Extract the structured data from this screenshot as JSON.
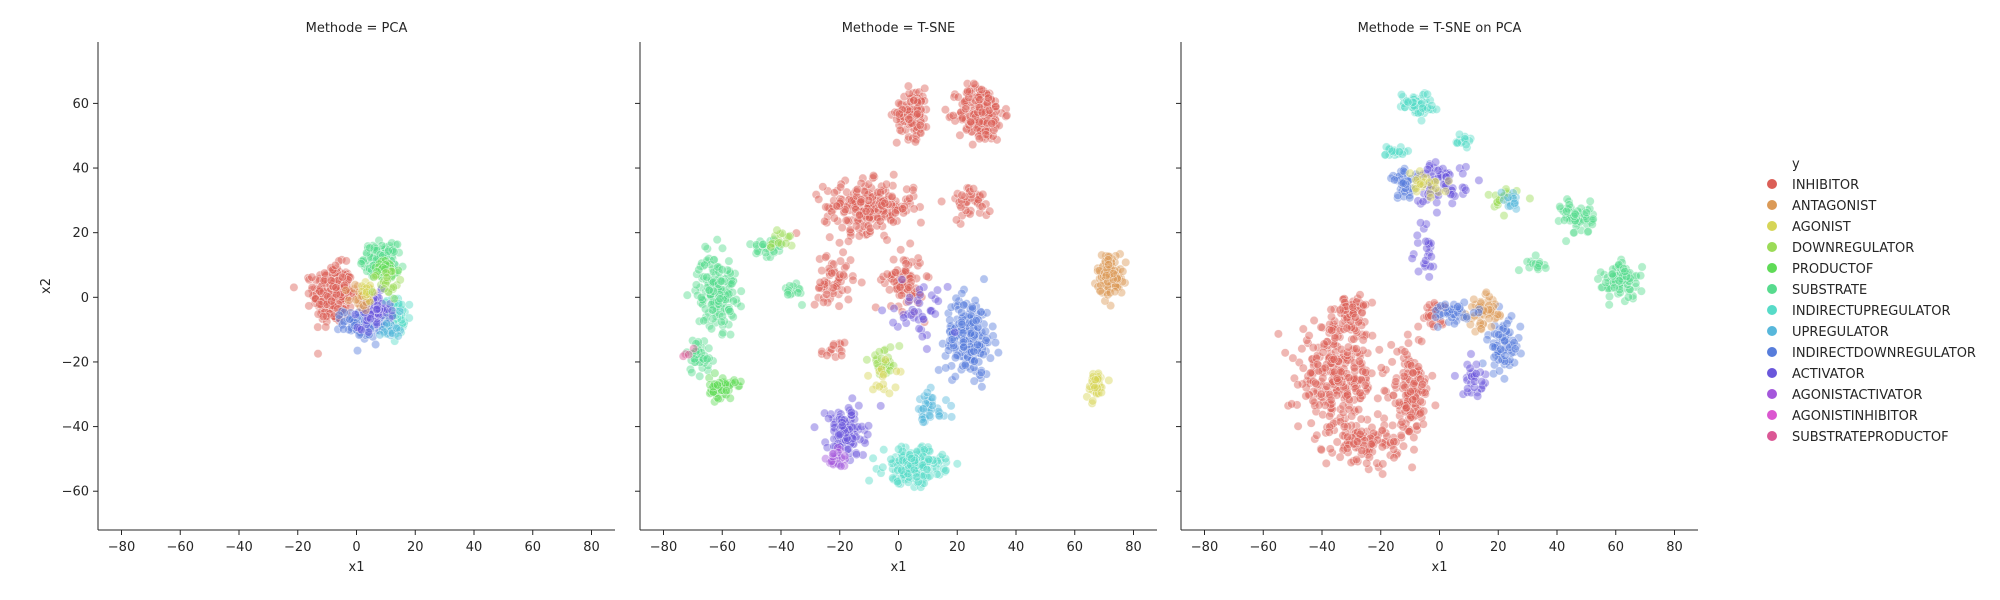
{
  "chart_data": {
    "type": "scatter",
    "ylabel": "x2",
    "legend": {
      "title": "y",
      "placement": "right",
      "entries": [
        {
          "name": "INHIBITOR",
          "color": "#db5f57"
        },
        {
          "name": "ANTAGONIST",
          "color": "#db9a57"
        },
        {
          "name": "AGONIST",
          "color": "#d6d557"
        },
        {
          "name": "DOWNREGULATOR",
          "color": "#9bdb57"
        },
        {
          "name": "PRODUCTOF",
          "color": "#5fdb57"
        },
        {
          "name": "SUBSTRATE",
          "color": "#57db8e"
        },
        {
          "name": "INDIRECTUPREGULATOR",
          "color": "#57dbc8"
        },
        {
          "name": "UPREGULATOR",
          "color": "#57b7db"
        },
        {
          "name": "INDIRECTDOWNREGULATOR",
          "color": "#577ddb"
        },
        {
          "name": "ACTIVATOR",
          "color": "#6a57db"
        },
        {
          "name": "AGONISTACTIVATOR",
          "color": "#a457db"
        },
        {
          "name": "AGONISTINHIBITOR",
          "color": "#db57d0"
        },
        {
          "name": "SUBSTRATEPRODUCTOF",
          "color": "#db5795"
        }
      ]
    },
    "shared_xlim": [
      -88,
      88
    ],
    "shared_ylim": [
      -72,
      79
    ],
    "xticks": [
      -80,
      -60,
      -40,
      -20,
      0,
      20,
      40,
      60,
      80
    ],
    "yticks": [
      60,
      40,
      20,
      0,
      -20,
      -40,
      -60
    ],
    "grid": false,
    "panels": [
      {
        "title": "Methode = PCA",
        "xlabel": "x1",
        "clusters": [
          {
            "category": "INHIBITOR",
            "center": [
              -8,
              1
            ],
            "spread": [
              6,
              8
            ],
            "n": 320
          },
          {
            "category": "SUBSTRATE",
            "center": [
              8,
              12
            ],
            "spread": [
              5,
              4
            ],
            "n": 140
          },
          {
            "category": "PRODUCTOF",
            "center": [
              10,
              8
            ],
            "spread": [
              4,
              3
            ],
            "n": 50
          },
          {
            "category": "INDIRECTUPREGULATOR",
            "center": [
              13,
              -6
            ],
            "spread": [
              3,
              5
            ],
            "n": 100
          },
          {
            "category": "INDIRECTDOWNREGULATOR",
            "center": [
              2,
              -8
            ],
            "spread": [
              6,
              4
            ],
            "n": 120
          },
          {
            "category": "ACTIVATOR",
            "center": [
              6,
              -4
            ],
            "spread": [
              5,
              5
            ],
            "n": 80
          },
          {
            "category": "ANTAGONIST",
            "center": [
              2,
              0
            ],
            "spread": [
              4,
              4
            ],
            "n": 30
          },
          {
            "category": "AGONIST",
            "center": [
              3,
              3
            ],
            "spread": [
              3,
              3
            ],
            "n": 15
          },
          {
            "category": "DOWNREGULATOR",
            "center": [
              10,
              4
            ],
            "spread": [
              4,
              4
            ],
            "n": 20
          },
          {
            "category": "UPREGULATOR",
            "center": [
              12,
              -10
            ],
            "spread": [
              3,
              3
            ],
            "n": 20
          }
        ]
      },
      {
        "title": "Methode = T-SNE",
        "xlabel": "x1",
        "clusters": [
          {
            "category": "INHIBITOR",
            "center": [
              28,
              57
            ],
            "spread": [
              7,
              8
            ],
            "n": 200
          },
          {
            "category": "INHIBITOR",
            "center": [
              5,
              57
            ],
            "spread": [
              5,
              7
            ],
            "n": 110
          },
          {
            "category": "INHIBITOR",
            "center": [
              -10,
              28
            ],
            "spread": [
              14,
              7
            ],
            "n": 230
          },
          {
            "category": "INHIBITOR",
            "center": [
              2,
              5
            ],
            "spread": [
              6,
              8
            ],
            "n": 80
          },
          {
            "category": "INHIBITOR",
            "center": [
              -22,
              5
            ],
            "spread": [
              6,
              9
            ],
            "n": 60
          },
          {
            "category": "INHIBITOR",
            "center": [
              25,
              30
            ],
            "spread": [
              6,
              5
            ],
            "n": 40
          },
          {
            "category": "INHIBITOR",
            "center": [
              -22,
              -17
            ],
            "spread": [
              4,
              3
            ],
            "n": 15
          },
          {
            "category": "SUBSTRATE",
            "center": [
              -62,
              2
            ],
            "spread": [
              6,
              10
            ],
            "n": 170
          },
          {
            "category": "SUBSTRATE",
            "center": [
              -68,
              -18
            ],
            "spread": [
              4,
              5
            ],
            "n": 40
          },
          {
            "category": "SUBSTRATE",
            "center": [
              -45,
              15
            ],
            "spread": [
              5,
              4
            ],
            "n": 30
          },
          {
            "category": "SUBSTRATE",
            "center": [
              -35,
              2
            ],
            "spread": [
              3,
              3
            ],
            "n": 15
          },
          {
            "category": "PRODUCTOF",
            "center": [
              -60,
              -28
            ],
            "spread": [
              4,
              3
            ],
            "n": 60
          },
          {
            "category": "DOWNREGULATOR",
            "center": [
              -40,
              18
            ],
            "spread": [
              4,
              3
            ],
            "n": 15
          },
          {
            "category": "ANTAGONIST",
            "center": [
              72,
              7
            ],
            "spread": [
              4,
              6
            ],
            "n": 110
          },
          {
            "category": "AGONIST",
            "center": [
              67,
              -27
            ],
            "spread": [
              3,
              4
            ],
            "n": 45
          },
          {
            "category": "INDIRECTDOWNREGULATOR",
            "center": [
              24,
              -12
            ],
            "spread": [
              7,
              11
            ],
            "n": 190
          },
          {
            "category": "ACTIVATOR",
            "center": [
              -18,
              -42
            ],
            "spread": [
              6,
              7
            ],
            "n": 120
          },
          {
            "category": "ACTIVATOR",
            "center": [
              8,
              -5
            ],
            "spread": [
              8,
              8
            ],
            "n": 40
          },
          {
            "category": "INDIRECTUPREGULATOR",
            "center": [
              5,
              -52
            ],
            "spread": [
              9,
              5
            ],
            "n": 200
          },
          {
            "category": "UPREGULATOR",
            "center": [
              10,
              -35
            ],
            "spread": [
              6,
              5
            ],
            "n": 40
          },
          {
            "category": "AGONISTACTIVATOR",
            "center": [
              -20,
              -50
            ],
            "spread": [
              4,
              4
            ],
            "n": 20
          },
          {
            "category": "DOWNREGULATOR",
            "center": [
              -5,
              -20
            ],
            "spread": [
              5,
              4
            ],
            "n": 30
          },
          {
            "category": "AGONIST",
            "center": [
              -5,
              -25
            ],
            "spread": [
              6,
              4
            ],
            "n": 15
          },
          {
            "category": "SUBSTRATEPRODUCTOF",
            "center": [
              -72,
              -18
            ],
            "spread": [
              2,
              2
            ],
            "n": 4
          }
        ]
      },
      {
        "title": "Methode = T-SNE on PCA",
        "xlabel": "x1",
        "clusters": [
          {
            "category": "INHIBITOR",
            "center": [
              -35,
              -25
            ],
            "spread": [
              12,
              15
            ],
            "n": 300
          },
          {
            "category": "INHIBITOR",
            "center": [
              -10,
              -30
            ],
            "spread": [
              6,
              12
            ],
            "n": 150
          },
          {
            "category": "INHIBITOR",
            "center": [
              -25,
              -45
            ],
            "spread": [
              10,
              5
            ],
            "n": 100
          },
          {
            "category": "INHIBITOR",
            "center": [
              -30,
              -5
            ],
            "spread": [
              5,
              6
            ],
            "n": 60
          },
          {
            "category": "INHIBITOR",
            "center": [
              -2,
              -5
            ],
            "spread": [
              4,
              3
            ],
            "n": 30
          },
          {
            "category": "INDIRECTUPREGULATOR",
            "center": [
              -8,
              60
            ],
            "spread": [
              5,
              3
            ],
            "n": 70
          },
          {
            "category": "INDIRECTUPREGULATOR",
            "center": [
              -15,
              45
            ],
            "spread": [
              3,
              2
            ],
            "n": 20
          },
          {
            "category": "SUBSTRATE",
            "center": [
              62,
              5
            ],
            "spread": [
              6,
              5
            ],
            "n": 90
          },
          {
            "category": "SUBSTRATE",
            "center": [
              47,
              25
            ],
            "spread": [
              5,
              5
            ],
            "n": 60
          },
          {
            "category": "SUBSTRATE",
            "center": [
              33,
              10
            ],
            "spread": [
              3,
              2
            ],
            "n": 15
          },
          {
            "category": "ACTIVATOR",
            "center": [
              0,
              35
            ],
            "spread": [
              8,
              6
            ],
            "n": 80
          },
          {
            "category": "INDIRECTDOWNREGULATOR",
            "center": [
              -12,
              35
            ],
            "spread": [
              4,
              4
            ],
            "n": 40
          },
          {
            "category": "INDIRECTDOWNREGULATOR",
            "center": [
              22,
              -15
            ],
            "spread": [
              5,
              8
            ],
            "n": 70
          },
          {
            "category": "ANTAGONIST",
            "center": [
              15,
              -5
            ],
            "spread": [
              5,
              5
            ],
            "n": 50
          },
          {
            "category": "AGONIST",
            "center": [
              -5,
              35
            ],
            "spread": [
              5,
              3
            ],
            "n": 25
          },
          {
            "category": "DOWNREGULATOR",
            "center": [
              20,
              30
            ],
            "spread": [
              6,
              3
            ],
            "n": 20
          },
          {
            "category": "INDIRECTDOWNREGULATOR",
            "center": [
              5,
              -5
            ],
            "spread": [
              8,
              3
            ],
            "n": 40
          },
          {
            "category": "ACTIVATOR",
            "center": [
              12,
              -25
            ],
            "spread": [
              4,
              5
            ],
            "n": 30
          },
          {
            "category": "ACTIVATOR",
            "center": [
              -5,
              15
            ],
            "spread": [
              3,
              8
            ],
            "n": 25
          },
          {
            "category": "UPREGULATOR",
            "center": [
              25,
              30
            ],
            "spread": [
              4,
              3
            ],
            "n": 15
          },
          {
            "category": "INDIRECTUPREGULATOR",
            "center": [
              8,
              48
            ],
            "spread": [
              3,
              3
            ],
            "n": 15
          }
        ]
      }
    ]
  }
}
